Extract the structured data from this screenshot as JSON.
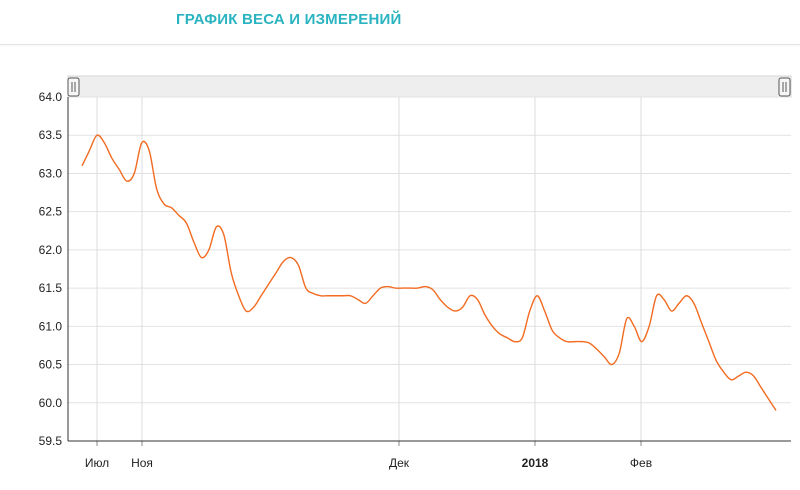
{
  "header": {
    "title": "ГРАФИК ВЕСА И ИЗМЕРЕНИЙ"
  },
  "colors": {
    "title": "#2ab3c0",
    "line": "#f26b21",
    "grid": "#dcdcdc",
    "navigator": "#eeeeee"
  },
  "chart_data": {
    "type": "line",
    "title": "",
    "xlabel": "",
    "ylabel": "",
    "ylim": [
      59.5,
      64.0
    ],
    "grid": true,
    "y_ticks": [
      "59.5",
      "60.0",
      "60.5",
      "61.0",
      "61.5",
      "62.0",
      "62.5",
      "63.0",
      "63.5",
      "64.0"
    ],
    "x_ticks": [
      {
        "label": "Июл",
        "bold": false
      },
      {
        "label": "Ноя",
        "bold": false
      },
      {
        "label": "Дек",
        "bold": false
      },
      {
        "label": "2018",
        "bold": true
      },
      {
        "label": "Фев",
        "bold": false
      }
    ],
    "series": [
      {
        "values": [
          63.1,
          63.3,
          63.5,
          63.4,
          63.2,
          63.05,
          62.9,
          63.0,
          63.4,
          63.3,
          62.8,
          62.6,
          62.55,
          62.45,
          62.35,
          62.1,
          61.9,
          62.0,
          62.3,
          62.2,
          61.7,
          61.4,
          61.2,
          61.25,
          61.4,
          61.55,
          61.7,
          61.85,
          61.9,
          61.8,
          61.5,
          61.43,
          61.4,
          61.4,
          61.4,
          61.4,
          61.4,
          61.35,
          61.3,
          61.4,
          61.5,
          61.52,
          61.5,
          61.5,
          61.5,
          61.5,
          61.52,
          61.48,
          61.35,
          61.25,
          61.2,
          61.25,
          61.4,
          61.35,
          61.15,
          61.0,
          60.9,
          60.85,
          60.8,
          60.85,
          61.2,
          61.4,
          61.2,
          60.95,
          60.85,
          60.8,
          60.8,
          60.8,
          60.78,
          60.7,
          60.6,
          60.5,
          60.65,
          61.1,
          61.0,
          60.8,
          61.0,
          61.4,
          61.35,
          61.2,
          61.3,
          61.4,
          61.3,
          61.05,
          60.8,
          60.55,
          60.4,
          60.3,
          60.35,
          60.4,
          60.35,
          60.2,
          60.05,
          59.9
        ]
      }
    ]
  }
}
